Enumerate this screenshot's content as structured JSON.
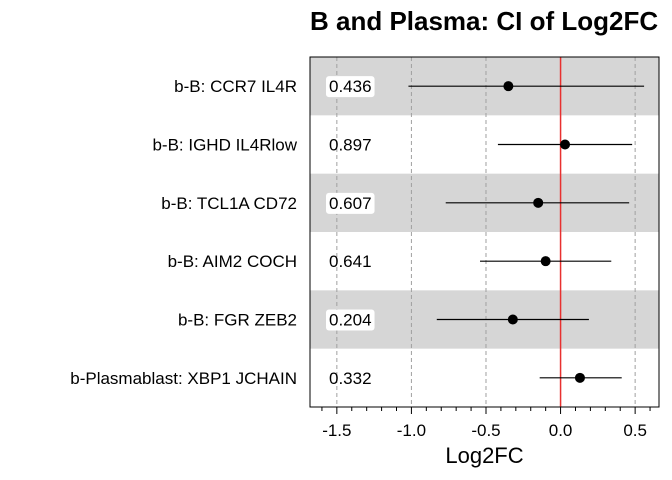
{
  "chart_data": {
    "type": "forest",
    "title": "B and Plasma: CI of Log2FC",
    "xlabel": "Log2FC",
    "xlim": [
      -1.68,
      0.66
    ],
    "x_ticks": [
      -1.5,
      -1.0,
      -0.5,
      0.0,
      0.5
    ],
    "x_tick_labels": [
      "-1.5",
      "-1.0",
      "-0.5",
      "0.0",
      "0.5"
    ],
    "reference_line": 0.0,
    "reference_color": "#e8302f",
    "grid": "vertical dashed at major ticks",
    "rows": [
      {
        "label": "b-B: CCR7 IL4R",
        "p_value": "0.436",
        "estimate": -0.35,
        "ci_low": -1.02,
        "ci_high": 0.56,
        "shaded": true
      },
      {
        "label": "b-B: IGHD IL4Rlow",
        "p_value": "0.897",
        "estimate": 0.03,
        "ci_low": -0.42,
        "ci_high": 0.48,
        "shaded": false
      },
      {
        "label": "b-B: TCL1A CD72",
        "p_value": "0.607",
        "estimate": -0.15,
        "ci_low": -0.77,
        "ci_high": 0.46,
        "shaded": true
      },
      {
        "label": "b-B: AIM2 COCH",
        "p_value": "0.641",
        "estimate": -0.1,
        "ci_low": -0.54,
        "ci_high": 0.34,
        "shaded": false
      },
      {
        "label": "b-B: FGR ZEB2",
        "p_value": "0.204",
        "estimate": -0.32,
        "ci_low": -0.83,
        "ci_high": 0.19,
        "shaded": true
      },
      {
        "label": "b-Plasmablast: XBP1 JCHAIN",
        "p_value": "0.332",
        "estimate": 0.13,
        "ci_low": -0.14,
        "ci_high": 0.41,
        "shaded": false
      }
    ]
  }
}
